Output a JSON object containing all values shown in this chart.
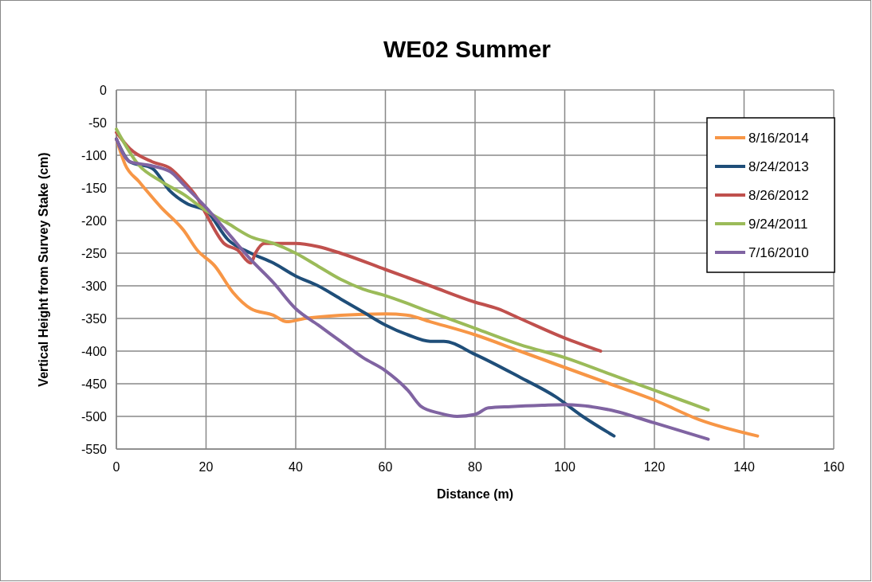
{
  "chart_data": {
    "type": "line",
    "title": "WE02 Summer",
    "xlabel": "Distance  (m)",
    "ylabel": "Vertical Height from Survey Stake (cm)",
    "xlim": [
      0,
      160
    ],
    "xticks": [
      0,
      20,
      40,
      60,
      80,
      100,
      120,
      140,
      160
    ],
    "ylim": [
      -550,
      0
    ],
    "yticks": [
      0,
      -50,
      -100,
      -150,
      -200,
      -250,
      -300,
      -350,
      -400,
      -450,
      -500,
      -550
    ],
    "grid": true,
    "legend": "top right",
    "marker": "none",
    "line_style": "solid",
    "series": [
      {
        "name": "8/16/2014",
        "color": "#f79646",
        "x": [
          0,
          2,
          5,
          10,
          15,
          18,
          22,
          26,
          30,
          35,
          38,
          42,
          50,
          60,
          65,
          70,
          80,
          90,
          100,
          110,
          120,
          130,
          143
        ],
        "values": [
          -75,
          -115,
          -140,
          -180,
          -215,
          -245,
          -270,
          -310,
          -335,
          -345,
          -355,
          -350,
          -345,
          -343,
          -345,
          -355,
          -375,
          -400,
          -425,
          -450,
          -475,
          -505,
          -530
        ]
      },
      {
        "name": "8/24/2013",
        "color": "#1f4e79",
        "x": [
          0,
          3,
          8,
          12,
          16,
          20,
          25,
          30,
          35,
          40,
          45,
          50,
          55,
          60,
          65,
          70,
          73,
          80,
          90,
          98,
          104,
          111
        ],
        "values": [
          -75,
          -110,
          -120,
          -155,
          -175,
          -185,
          -230,
          -250,
          -265,
          -285,
          -300,
          -320,
          -340,
          -360,
          -375,
          -385,
          -385,
          -405,
          -440,
          -470,
          -500,
          -530
        ]
      },
      {
        "name": "8/26/2012",
        "color": "#c0504d",
        "x": [
          0,
          3,
          8,
          12,
          15,
          18,
          20,
          24,
          27,
          30,
          31,
          33,
          40,
          45,
          50,
          60,
          70,
          80,
          85,
          90,
          100,
          108
        ],
        "values": [
          -65,
          -90,
          -110,
          -120,
          -140,
          -165,
          -190,
          -235,
          -245,
          -265,
          -250,
          -235,
          -235,
          -240,
          -250,
          -275,
          -300,
          -325,
          -335,
          -350,
          -380,
          -400
        ]
      },
      {
        "name": "9/24/2011",
        "color": "#9bbb59",
        "x": [
          0,
          5,
          10,
          15,
          20,
          25,
          30,
          35,
          40,
          45,
          50,
          55,
          60,
          70,
          80,
          90,
          100,
          110,
          120,
          132
        ],
        "values": [
          -60,
          -115,
          -140,
          -160,
          -185,
          -205,
          -225,
          -235,
          -250,
          -270,
          -290,
          -305,
          -315,
          -340,
          -365,
          -390,
          -410,
          -435,
          -460,
          -490
        ]
      },
      {
        "name": "7/16/2010",
        "color": "#8064a2",
        "x": [
          0,
          3,
          7,
          12,
          15,
          20,
          25,
          30,
          35,
          40,
          45,
          50,
          55,
          60,
          65,
          68,
          72,
          76,
          80,
          83,
          88,
          95,
          100,
          110,
          120,
          132
        ],
        "values": [
          -75,
          -110,
          -115,
          -125,
          -145,
          -180,
          -220,
          -260,
          -295,
          -335,
          -360,
          -385,
          -410,
          -430,
          -460,
          -485,
          -495,
          -500,
          -497,
          -487,
          -485,
          -483,
          -482,
          -490,
          -510,
          -535
        ]
      }
    ]
  }
}
